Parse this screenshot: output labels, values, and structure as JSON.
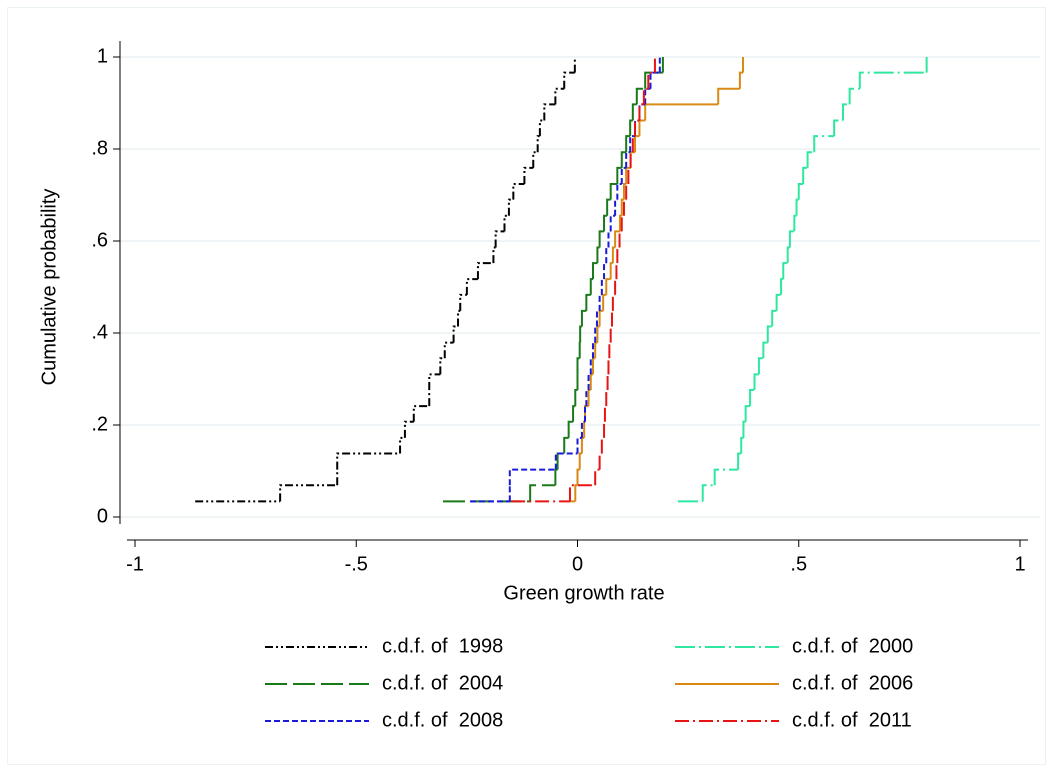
{
  "chart_data": {
    "type": "step",
    "x_label": "Green growth rate",
    "y_label": "Cumulative probability",
    "xlim": [
      -1,
      1
    ],
    "ylim": [
      0,
      1
    ],
    "xticks": [
      -1,
      {
        "value": -0.5,
        "label": "-.5"
      },
      0,
      {
        "value": 0.5,
        "label": ".5"
      },
      1
    ],
    "yticks": [
      0,
      {
        "value": 0.2,
        "label": ".2"
      },
      {
        "value": 0.4,
        "label": ".4"
      },
      {
        "value": 0.6,
        "label": ".6"
      },
      {
        "value": 0.8,
        "label": ".8"
      },
      1
    ],
    "grid": true,
    "legend": "bottom",
    "series": [
      {
        "name": "c.d.f. of  1998",
        "color": "#000000",
        "linestyle": "dash-dot-dot",
        "x": [
          -0.864,
          -0.672,
          -0.543,
          -0.543,
          -0.401,
          -0.39,
          -0.37,
          -0.335,
          -0.335,
          -0.31,
          -0.3,
          -0.28,
          -0.27,
          -0.265,
          -0.25,
          -0.225,
          -0.19,
          -0.185,
          -0.165,
          -0.155,
          -0.145,
          -0.12,
          -0.1,
          -0.09,
          -0.085,
          -0.075,
          -0.05,
          -0.03,
          -0.006
        ],
        "values": [
          0.034,
          0.069,
          0.103,
          0.138,
          0.172,
          0.207,
          0.241,
          0.276,
          0.31,
          0.345,
          0.379,
          0.414,
          0.448,
          0.483,
          0.517,
          0.552,
          0.586,
          0.621,
          0.655,
          0.69,
          0.724,
          0.759,
          0.793,
          0.828,
          0.862,
          0.897,
          0.931,
          0.966,
          1
        ]
      },
      {
        "name": "c.d.f. of  2000",
        "color": "#2ee8a0",
        "linestyle": "long-dash-dot",
        "x": [
          0.227,
          0.283,
          0.31,
          0.363,
          0.37,
          0.375,
          0.38,
          0.39,
          0.4,
          0.41,
          0.42,
          0.43,
          0.44,
          0.45,
          0.46,
          0.465,
          0.475,
          0.48,
          0.49,
          0.495,
          0.5,
          0.51,
          0.52,
          0.535,
          0.58,
          0.6,
          0.615,
          0.638,
          0.789
        ],
        "values": [
          0.034,
          0.069,
          0.103,
          0.138,
          0.172,
          0.207,
          0.241,
          0.276,
          0.31,
          0.345,
          0.379,
          0.414,
          0.448,
          0.483,
          0.517,
          0.552,
          0.586,
          0.621,
          0.655,
          0.69,
          0.724,
          0.759,
          0.793,
          0.828,
          0.862,
          0.897,
          0.931,
          0.966,
          1
        ]
      },
      {
        "name": "c.d.f. of  2004",
        "color": "#1a7a1a",
        "linestyle": "long-dash",
        "x": [
          -0.304,
          -0.107,
          -0.05,
          -0.045,
          -0.03,
          -0.02,
          -0.01,
          -0.005,
          0,
          0,
          0.005,
          0.006,
          0.01,
          0.02,
          0.03,
          0.035,
          0.045,
          0.05,
          0.06,
          0.067,
          0.075,
          0.09,
          0.1,
          0.11,
          0.119,
          0.125,
          0.134,
          0.153,
          0.193
        ],
        "values": [
          0.034,
          0.069,
          0.103,
          0.138,
          0.172,
          0.207,
          0.241,
          0.276,
          0.31,
          0.345,
          0.379,
          0.414,
          0.448,
          0.483,
          0.517,
          0.552,
          0.586,
          0.621,
          0.655,
          0.69,
          0.724,
          0.759,
          0.793,
          0.828,
          0.862,
          0.897,
          0.931,
          0.966,
          1
        ]
      },
      {
        "name": "c.d.f. of  2006",
        "color": "#d98a14",
        "linestyle": "solid",
        "x": [
          -0.017,
          -0.005,
          0,
          0.005,
          0.01,
          0.015,
          0.017,
          0.025,
          0.03,
          0.035,
          0.04,
          0.045,
          0.05,
          0.058,
          0.065,
          0.075,
          0.08,
          0.085,
          0.096,
          0.1,
          0.105,
          0.11,
          0.12,
          0.13,
          0.14,
          0.153,
          0.318,
          0.367,
          0.374
        ],
        "values": [
          0.034,
          0.069,
          0.103,
          0.138,
          0.172,
          0.207,
          0.241,
          0.276,
          0.31,
          0.345,
          0.379,
          0.414,
          0.448,
          0.483,
          0.517,
          0.552,
          0.586,
          0.621,
          0.655,
          0.69,
          0.724,
          0.759,
          0.793,
          0.828,
          0.862,
          0.897,
          0.931,
          0.966,
          1
        ]
      },
      {
        "name": "c.d.f. of  2008",
        "color": "#1a1ad9",
        "linestyle": "short-dash",
        "x": [
          -0.243,
          -0.153,
          -0.153,
          -0.049,
          0,
          0.01,
          0.017,
          0.02,
          0.025,
          0.03,
          0.035,
          0.04,
          0.044,
          0.05,
          0.055,
          0.06,
          0.065,
          0.07,
          0.075,
          0.085,
          0.09,
          0.1,
          0.11,
          0.119,
          0.13,
          0.14,
          0.153,
          0.165,
          0.186
        ],
        "values": [
          0.034,
          0.069,
          0.103,
          0.138,
          0.172,
          0.207,
          0.241,
          0.276,
          0.31,
          0.345,
          0.379,
          0.414,
          0.448,
          0.483,
          0.517,
          0.552,
          0.586,
          0.621,
          0.655,
          0.69,
          0.724,
          0.759,
          0.793,
          0.828,
          0.862,
          0.897,
          0.931,
          0.966,
          1
        ]
      },
      {
        "name": "c.d.f. of  2011",
        "color": "#e81414",
        "linestyle": "dash-dot",
        "x": [
          -0.15,
          -0.017,
          0.04,
          0.05,
          0.055,
          0.06,
          0.062,
          0.065,
          0.068,
          0.07,
          0.072,
          0.075,
          0.078,
          0.08,
          0.085,
          0.088,
          0.09,
          0.095,
          0.1,
          0.105,
          0.11,
          0.115,
          0.12,
          0.125,
          0.13,
          0.14,
          0.15,
          0.16,
          0.175
        ],
        "values": [
          0.034,
          0.069,
          0.103,
          0.138,
          0.172,
          0.207,
          0.241,
          0.276,
          0.31,
          0.345,
          0.379,
          0.414,
          0.448,
          0.483,
          0.517,
          0.552,
          0.586,
          0.621,
          0.655,
          0.69,
          0.724,
          0.759,
          0.793,
          0.828,
          0.862,
          0.897,
          0.931,
          0.966,
          1
        ]
      }
    ]
  }
}
